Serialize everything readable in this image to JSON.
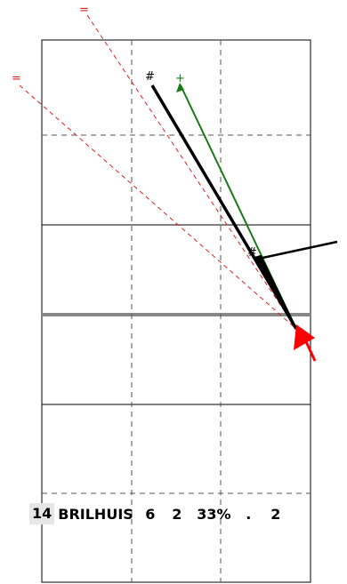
{
  "player": {
    "number": "14",
    "name": "BRILHUIS",
    "stat_1": "6",
    "stat_2": "2",
    "percentage": "33%",
    "stat_3": ".",
    "stat_4": "2"
  },
  "markers": {
    "equal_symbol": "=",
    "hash_symbol": "#",
    "plus_symbol": "+"
  },
  "colors": {
    "court_lines": "#000000",
    "grid_dashed": "#555555",
    "net_line": "#888888",
    "red_dashed": "#e0201b",
    "black_trajectory": "#000000",
    "green_trajectory": "#1a7a1a",
    "arrow_red": "#ff0000"
  }
}
